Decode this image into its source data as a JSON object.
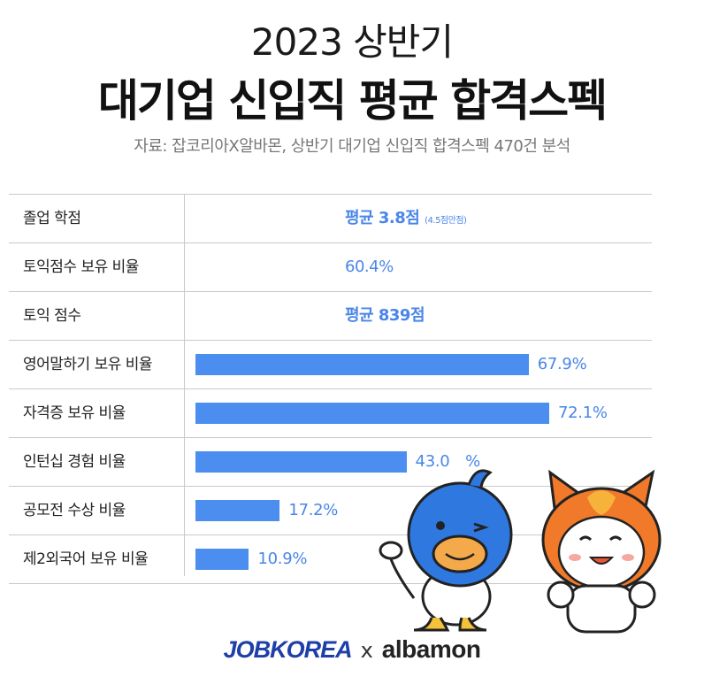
{
  "header": {
    "title_line1": "2023 상반기",
    "title_line2": "대기업 신입직 평균 합격스펙",
    "source": "자료: 잡코리아X알바몬, 상반기 대기업 신입직 합격스펙 470건 분석"
  },
  "text_rows": [
    {
      "label": "졸업 학점",
      "value": "평균 3.8점",
      "note": "(4.5점만점)"
    },
    {
      "label": "토익점수 보유 비율",
      "value": "60.4%",
      "note": ""
    },
    {
      "label": "토익 점수",
      "value": "평균 839점",
      "note": ""
    }
  ],
  "chart_data": {
    "type": "bar",
    "orientation": "horizontal",
    "categories": [
      "영어말하기 보유 비율",
      "자격증 보유 비율",
      "인턴십 경험 비율",
      "공모전 수상 비율",
      "제2외국어 보유 비율"
    ],
    "values": [
      67.9,
      72.1,
      43.0,
      17.2,
      10.9
    ],
    "value_labels": [
      "67.9%",
      "72.1%",
      "43.0　%",
      "17.2%",
      "10.9%"
    ],
    "unit": "%",
    "bar_color": "#4b8ef0",
    "label_color": "#4a86e8"
  },
  "logos": {
    "left": "JOBKOREA",
    "separator": "x",
    "right": "albamon"
  },
  "colors": {
    "accent": "#4b8ef0",
    "mascot_blue": "#2f78e0",
    "mascot_orange": "#f07a2a"
  }
}
